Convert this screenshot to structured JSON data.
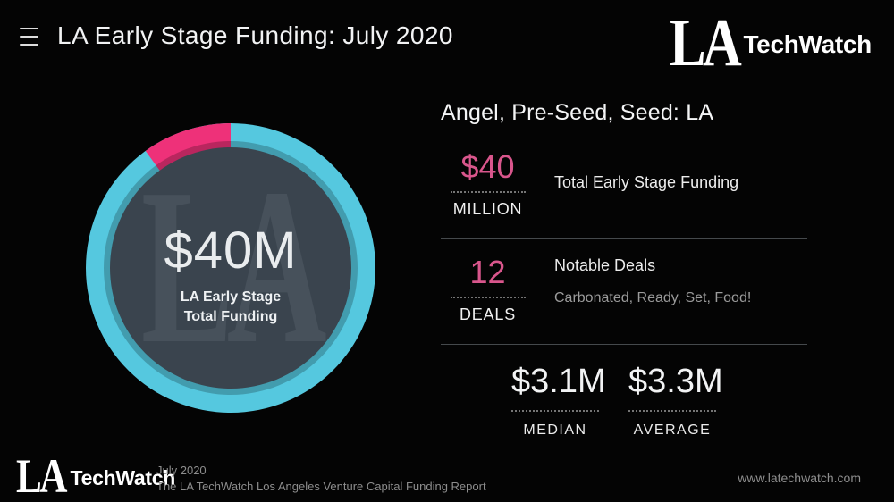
{
  "header": {
    "title": "LA Early Stage Funding: July 2020"
  },
  "brand": {
    "la": "LA",
    "name": "TechWatch"
  },
  "panel": {
    "heading": "Angel, Pre-Seed, Seed: LA",
    "stats": [
      {
        "value": "$40",
        "unit": "MILLION",
        "desc": "Total Early Stage Funding"
      },
      {
        "value": "12",
        "unit": "DEALS",
        "desc": "Notable Deals",
        "subdesc": "Carbonated, Ready, Set, Food!"
      }
    ],
    "summary": [
      {
        "value": "$3.1M",
        "label": "MEDIAN"
      },
      {
        "value": "$3.3M",
        "label": "AVERAGE"
      }
    ]
  },
  "chart_data": {
    "type": "donut",
    "title": "LA Early Stage Total Funding",
    "center_value": "$40M",
    "center_line1": "LA Early Stage",
    "center_line2": "Total Funding",
    "watermark_text": "LA",
    "start_angle_deg": -36,
    "segments": [
      {
        "name": "highlight",
        "percent": 10,
        "color": "#ee3179"
      },
      {
        "name": "base",
        "percent": 90,
        "color": "#55c8df"
      }
    ],
    "ring_outer_radius": 162,
    "inner_shadow_radius": 142,
    "ring_inner_radius": 135,
    "inner_shadow_color": "rgba(0,0,0,0.22)",
    "hole_color": "#3a444e",
    "watermark_color": "#47515b",
    "legend": "none"
  },
  "footer": {
    "date": "July 2020",
    "report": "The LA TechWatch Los Angeles Venture Capital Funding Report",
    "website": "www.latechwatch.com"
  },
  "colors": {
    "background": "#040404",
    "accent_pink_text": "#d9568c",
    "donut_pink": "#ee3179",
    "donut_cyan": "#55c8df",
    "divider": "#45494c"
  }
}
